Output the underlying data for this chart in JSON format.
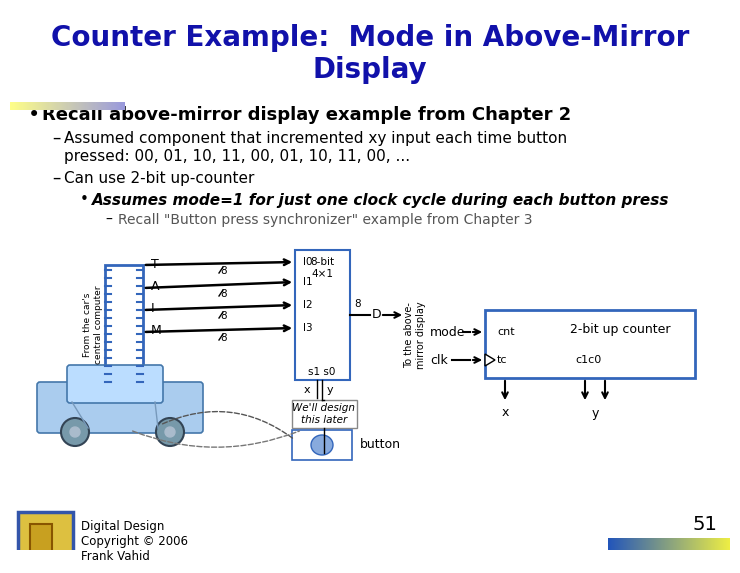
{
  "title_line1": "Counter Example:  Mode in Above-Mirror",
  "title_line2": "Display",
  "title_color": "#1111AA",
  "title_fontsize": 20,
  "bg_color": "#FFFFFF",
  "bullet1": "Recall above-mirror display example from Chapter 2",
  "sub1a": "Assumed component that incremented xy input each time button",
  "sub1b": "pressed: 00, 01, 10, 11, 00, 01, 10, 11, 00, ...",
  "sub2": "Can use 2-bit up-counter",
  "subsub1": "Assumes mode=1 for just one clock cycle during each button press",
  "subsubsub1": "Recall \"Button press synchronizer\" example from Chapter 3",
  "footer_text": "Digital Design\nCopyright © 2006\nFrank Vahid",
  "page_number": "51"
}
